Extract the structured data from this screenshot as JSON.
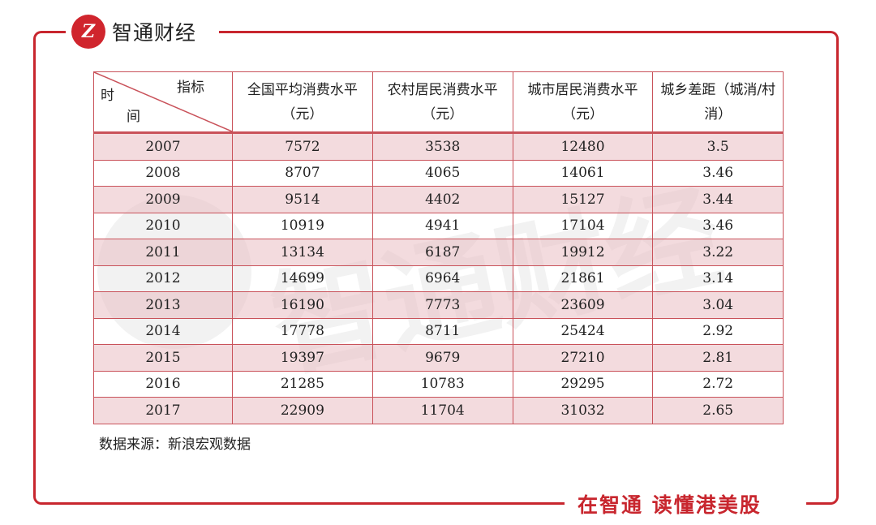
{
  "brand": {
    "logo_text": "智通财经",
    "logo_mark": "Z",
    "slogan": "在智通 读懂港美股",
    "accent": "#c8262e"
  },
  "table": {
    "corner": {
      "top_right": "指标",
      "left_1": "时",
      "left_2": "间"
    },
    "headers": [
      "全国平均消费水平（元）",
      "农村居民消费水平（元）",
      "城市居民消费水平（元）",
      "城乡差距（城消/村消）"
    ],
    "rows": [
      [
        "2007",
        "7572",
        "3538",
        "12480",
        "3.5"
      ],
      [
        "2008",
        "8707",
        "4065",
        "14061",
        "3.46"
      ],
      [
        "2009",
        "9514",
        "4402",
        "15127",
        "3.44"
      ],
      [
        "2010",
        "10919",
        "4941",
        "17104",
        "3.46"
      ],
      [
        "2011",
        "13134",
        "6187",
        "19912",
        "3.22"
      ],
      [
        "2012",
        "14699",
        "6964",
        "21861",
        "3.14"
      ],
      [
        "2013",
        "16190",
        "7773",
        "23609",
        "3.04"
      ],
      [
        "2014",
        "17778",
        "8711",
        "25424",
        "2.92"
      ],
      [
        "2015",
        "19397",
        "9679",
        "27210",
        "2.81"
      ],
      [
        "2016",
        "21285",
        "10783",
        "29295",
        "2.72"
      ],
      [
        "2017",
        "22909",
        "11704",
        "31032",
        "2.65"
      ]
    ]
  },
  "source": "数据来源：新浪宏观数据"
}
